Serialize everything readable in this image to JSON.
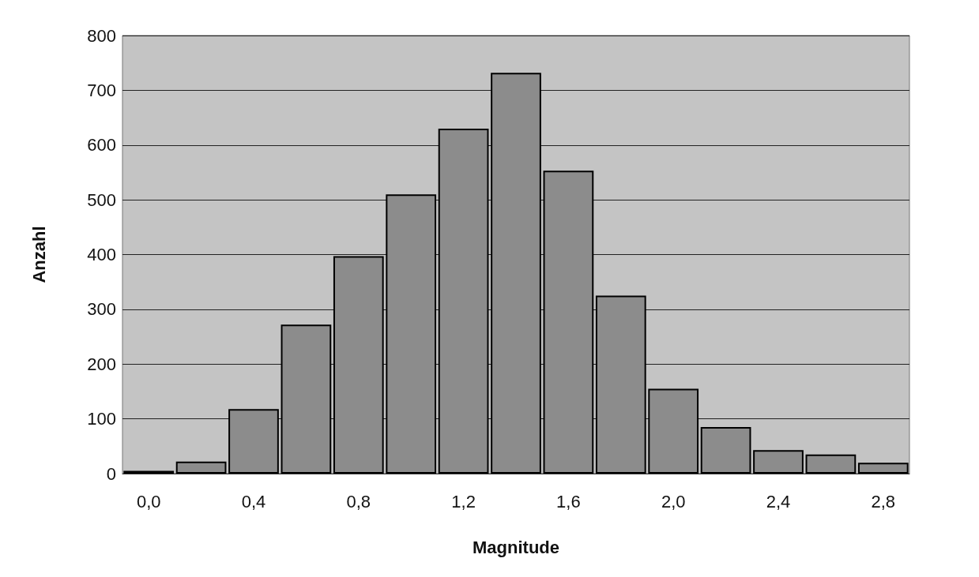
{
  "chart_data": {
    "type": "bar",
    "xlabel": "Magnitude",
    "ylabel": "Anzahl",
    "categories": [
      "0,0",
      null,
      "0,4",
      null,
      "0,8",
      null,
      "1,2",
      null,
      "1,6",
      null,
      "2,0",
      null,
      "2,4",
      null,
      "2,8"
    ],
    "values": [
      5,
      22,
      118,
      272,
      397,
      510,
      630,
      732,
      553,
      325,
      155,
      85,
      43,
      35,
      20
    ],
    "color": "#8c8c8c",
    "ylim": [
      0,
      800
    ],
    "yticks": [
      0,
      100,
      200,
      300,
      400,
      500,
      600,
      700,
      800
    ],
    "grid": "y"
  }
}
